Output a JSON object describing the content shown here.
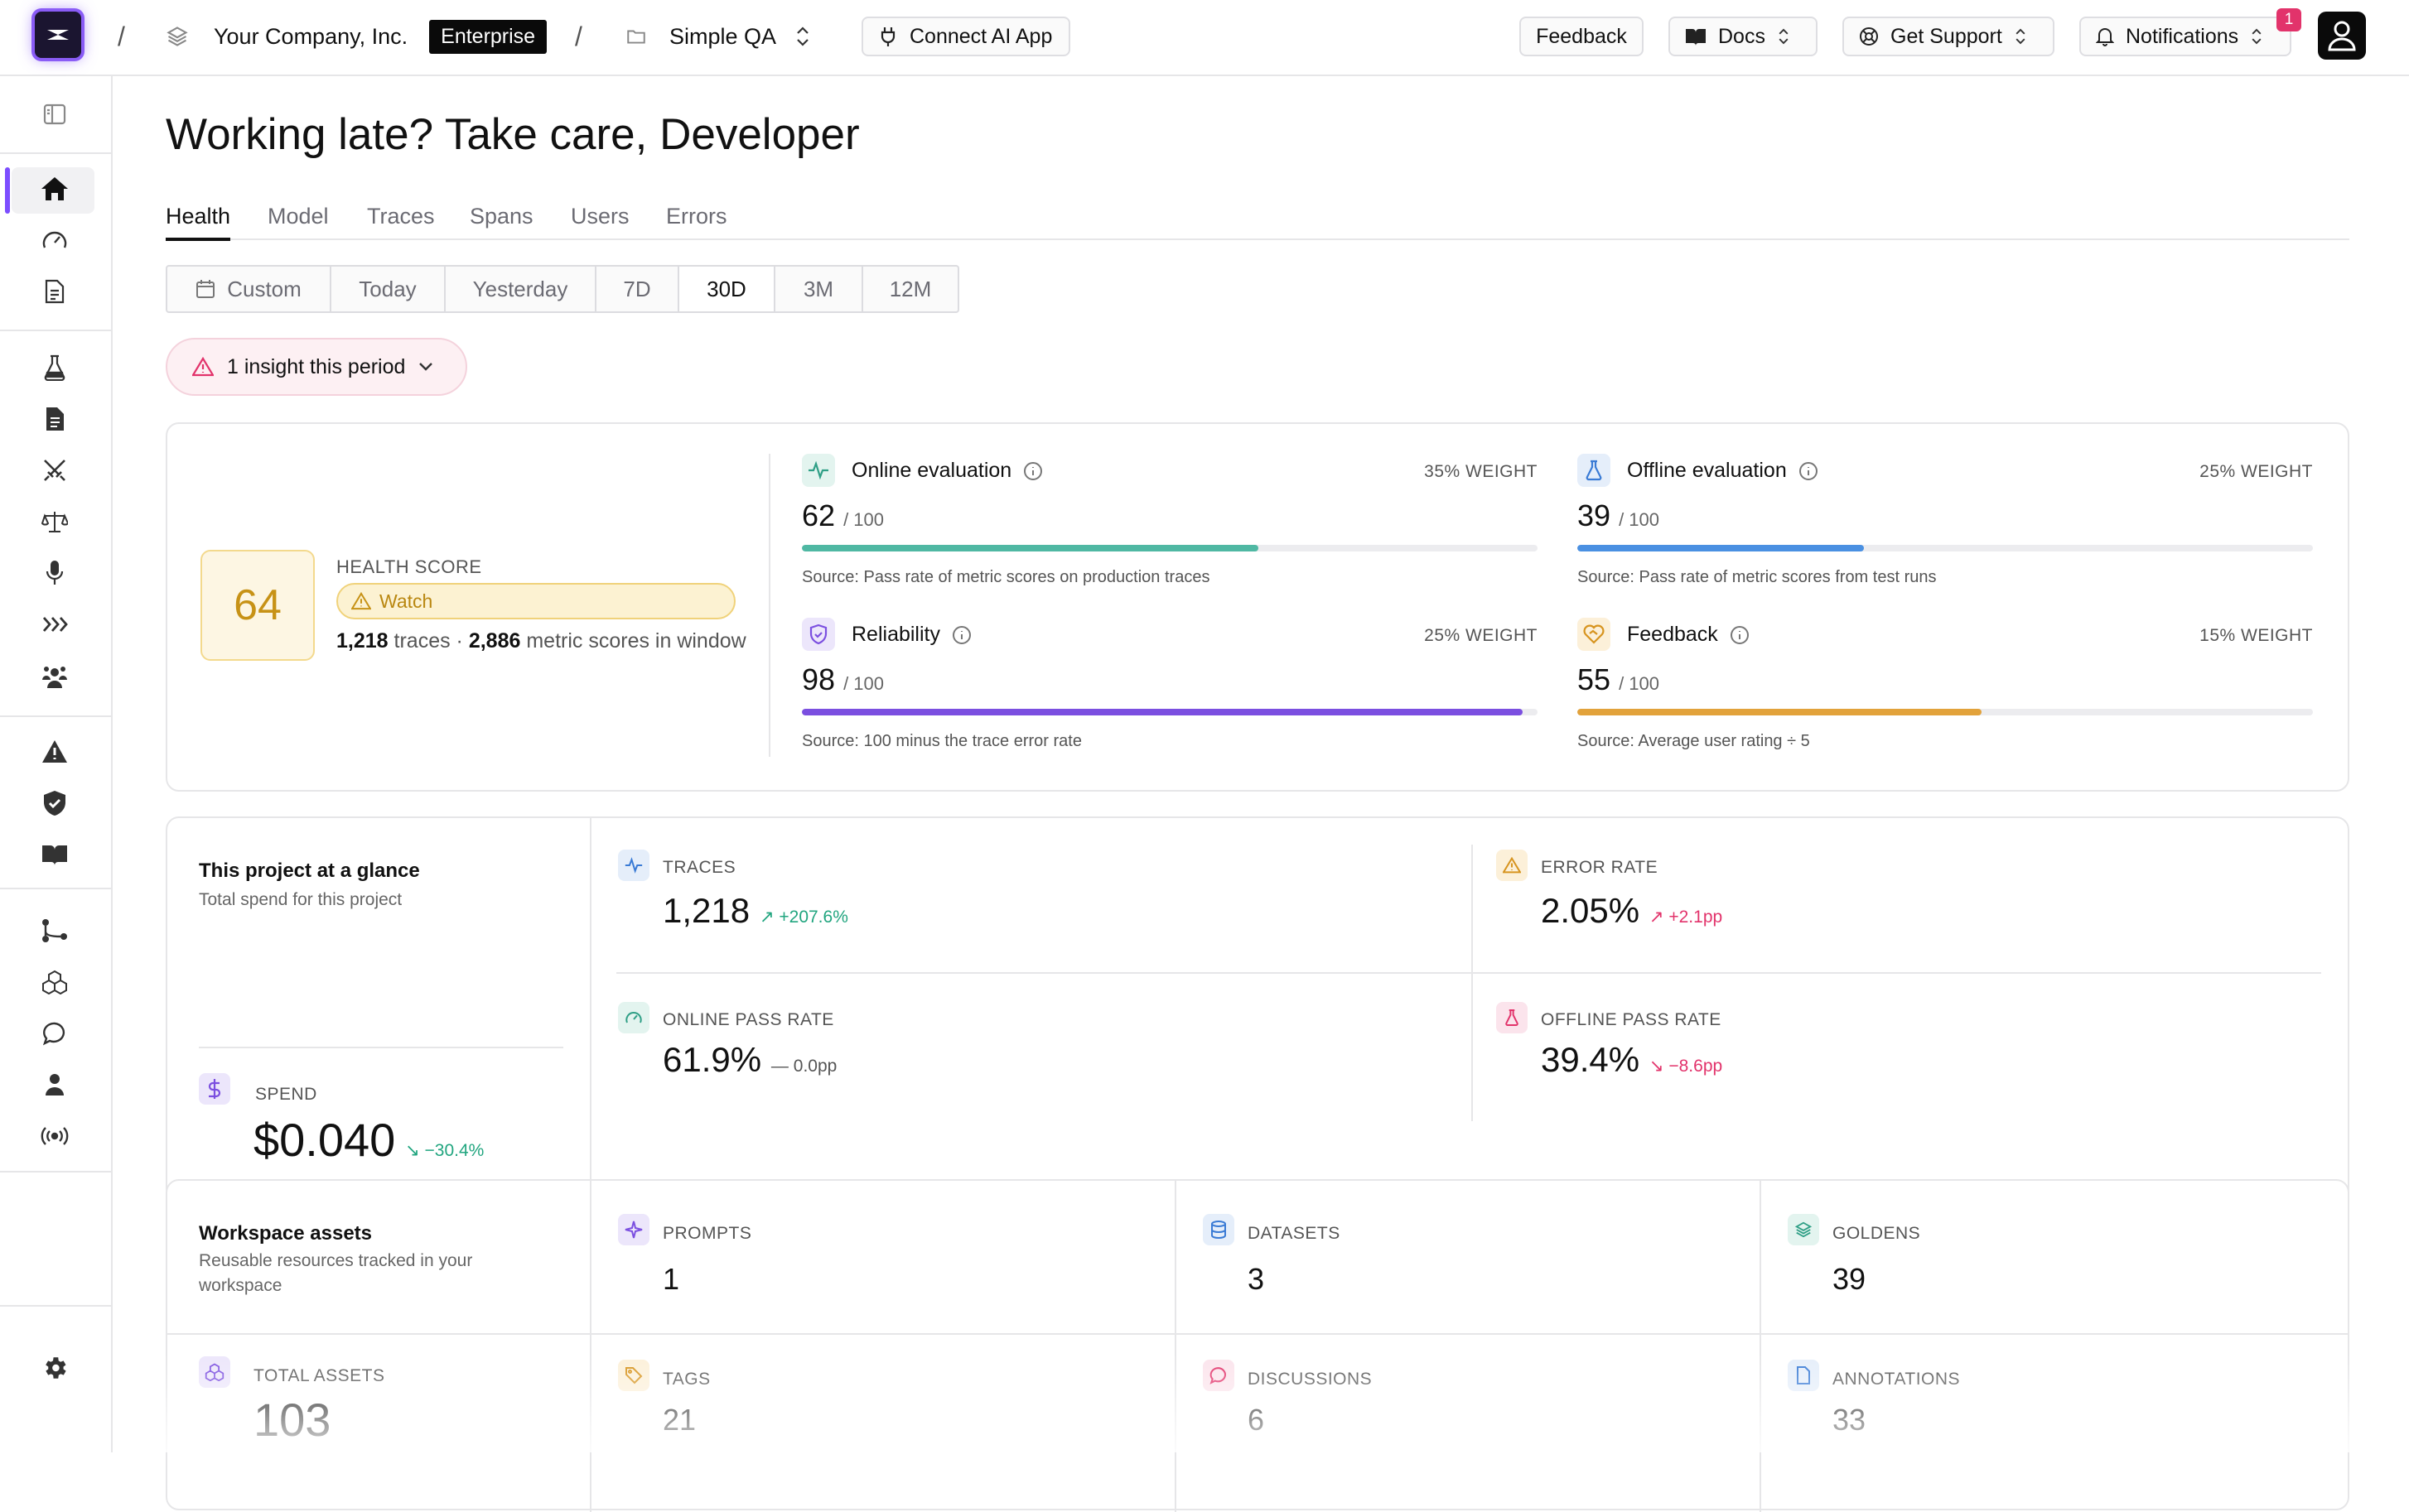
{
  "topbar": {
    "org_name": "Your Company, Inc.",
    "plan_badge": "Enterprise",
    "project_name": "Simple QA",
    "connect_label": "Connect AI App",
    "feedback_label": "Feedback",
    "docs_label": "Docs",
    "support_label": "Get Support",
    "notifications_label": "Notifications",
    "notifications_count": "1"
  },
  "greeting": "Working late? Take care, Developer",
  "tabs": [
    "Health",
    "Model",
    "Traces",
    "Spans",
    "Users",
    "Errors"
  ],
  "active_tab": "Health",
  "ranges": [
    "Custom",
    "Today",
    "Yesterday",
    "7D",
    "30D",
    "3M",
    "12M"
  ],
  "active_range": "30D",
  "insight_label": "1 insight this period",
  "health": {
    "score": "64",
    "label": "HEALTH SCORE",
    "status": "Watch",
    "traces_count": "1,218",
    "traces_word": "traces ·",
    "scores_count": "2,886",
    "scores_text": "metric scores in window",
    "metrics": [
      {
        "title": "Online evaluation",
        "weight": "35% WEIGHT",
        "score": "62",
        "out_of": "/ 100",
        "fraction": 0.62,
        "source": "Source: Pass rate of metric scores on production traces",
        "color": "#4fb8a3"
      },
      {
        "title": "Offline evaluation",
        "weight": "25% WEIGHT",
        "score": "39",
        "out_of": "/ 100",
        "fraction": 0.39,
        "source": "Source: Pass rate of metric scores from test runs",
        "color": "#4a90e2"
      },
      {
        "title": "Reliability",
        "weight": "25% WEIGHT",
        "score": "98",
        "out_of": "/ 100",
        "fraction": 0.98,
        "source": "Source: 100 minus the trace error rate",
        "color": "#7b4fe0"
      },
      {
        "title": "Feedback",
        "weight": "15% WEIGHT",
        "score": "55",
        "out_of": "/ 100",
        "fraction": 0.55,
        "source": "Source: Average user rating ÷ 5",
        "color": "#e2a23b"
      }
    ]
  },
  "glance": {
    "title": "This project at a glance",
    "subtitle": "Total spend for this project",
    "spend_label": "SPEND",
    "spend_value": "$0.040",
    "spend_delta": "−30.4%",
    "traces_label": "TRACES",
    "traces_value": "1,218",
    "traces_delta": "+207.6%",
    "error_label": "ERROR RATE",
    "error_value": "2.05%",
    "error_delta": "+2.1pp",
    "online_label": "ONLINE PASS RATE",
    "online_value": "61.9%",
    "online_delta": "0.0pp",
    "offline_label": "OFFLINE PASS RATE",
    "offline_value": "39.4%",
    "offline_delta": "−8.6pp"
  },
  "assets": {
    "title": "Workspace assets",
    "subtitle": "Reusable resources tracked in your workspace",
    "total_label": "TOTAL ASSETS",
    "total_value": "103",
    "prompts_label": "PROMPTS",
    "prompts_value": "1",
    "datasets_label": "DATASETS",
    "datasets_value": "3",
    "goldens_label": "GOLDENS",
    "goldens_value": "39",
    "tags_label": "TAGS",
    "tags_value": "21",
    "discussions_label": "DISCUSSIONS",
    "discussions_value": "6",
    "annotations_label": "ANNOTATIONS",
    "annotations_value": "33"
  }
}
